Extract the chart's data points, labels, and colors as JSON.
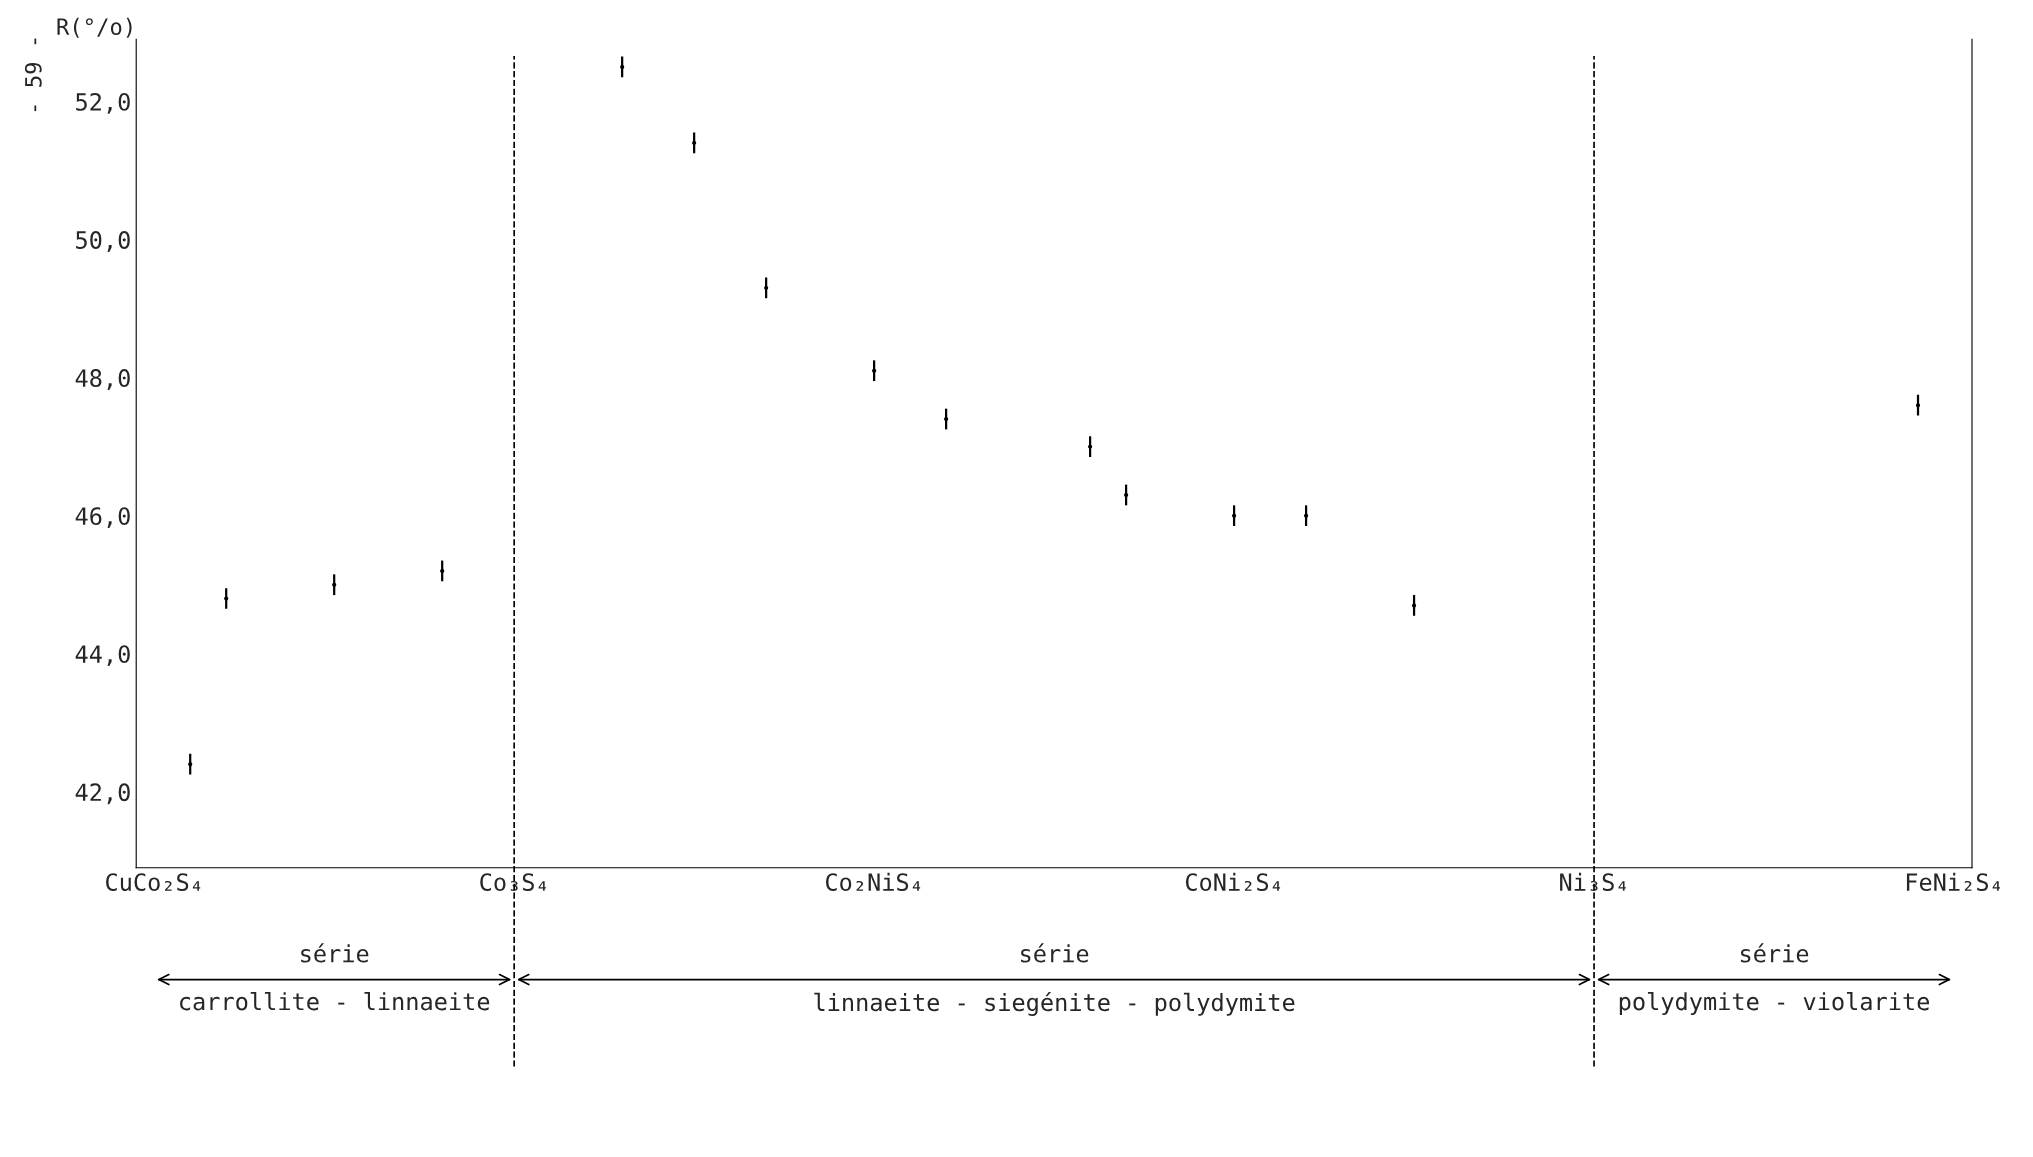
{
  "chart_data": {
    "type": "scatter",
    "ylabel": "R(°/o)",
    "annotations": [
      "- 59 -",
      "série\ncarrollite - linnaeite",
      "série\nlinnaeite - siegénite - polydymite",
      "série\npolydymite - violarite"
    ],
    "categories": [
      "CuCo₂S₄",
      null,
      null,
      null,
      null,
      null,
      null,
      null,
      null,
      null,
      "Co₃S₄",
      null,
      null,
      null,
      null,
      null,
      null,
      null,
      null,
      null,
      "Co₂NiS₄",
      null,
      null,
      null,
      null,
      null,
      null,
      null,
      null,
      null,
      "CoNi₂S₄",
      null,
      null,
      null,
      null,
      null,
      null,
      null,
      null,
      null,
      "Ni₃S₄",
      null,
      null,
      null,
      null,
      null,
      null,
      null,
      null,
      null,
      "FeNi₂S₄"
    ],
    "values": [
      null,
      42.4,
      44.8,
      null,
      null,
      45.0,
      null,
      null,
      45.2,
      null,
      null,
      null,
      null,
      52.5,
      null,
      51.4,
      null,
      49.3,
      null,
      null,
      48.1,
      null,
      47.4,
      null,
      null,
      null,
      47.0,
      46.3,
      null,
      null,
      46.0,
      null,
      46.0,
      null,
      null,
      44.7,
      null,
      null,
      null,
      null,
      null,
      null,
      null,
      null,
      null,
      null,
      null,
      null,
      null,
      47.6,
      null
    ],
    "errors": [
      null,
      0.15,
      0.15,
      null,
      null,
      0.15,
      null,
      null,
      0.15,
      null,
      null,
      null,
      null,
      0.15,
      null,
      0.15,
      null,
      0.15,
      null,
      null,
      0.15,
      null,
      0.15,
      null,
      null,
      null,
      0.15,
      0.15,
      null,
      null,
      0.15,
      null,
      0.15,
      null,
      null,
      0.15,
      null,
      null,
      null,
      null,
      null,
      null,
      null,
      null,
      null,
      null,
      null,
      null,
      null,
      0.15,
      null
    ],
    "marker": "circle",
    "color": "#000000",
    "ylim": [
      40.9,
      52.9
    ],
    "yticks": [
      {
        "value": 42,
        "label": "42,0"
      },
      {
        "value": 44,
        "label": "44,0"
      },
      {
        "value": 46,
        "label": "46,0"
      },
      {
        "value": 48,
        "label": "48,0"
      },
      {
        "value": 50,
        "label": "50,0"
      },
      {
        "value": 52,
        "label": "52,0"
      }
    ],
    "ref_lines": [
      {
        "axis": "x",
        "value": "Co₃S₄",
        "line_style": "dashed"
      },
      {
        "axis": "x",
        "value": "Ni₃S₄",
        "line_style": "dashed"
      }
    ],
    "grid": false
  }
}
